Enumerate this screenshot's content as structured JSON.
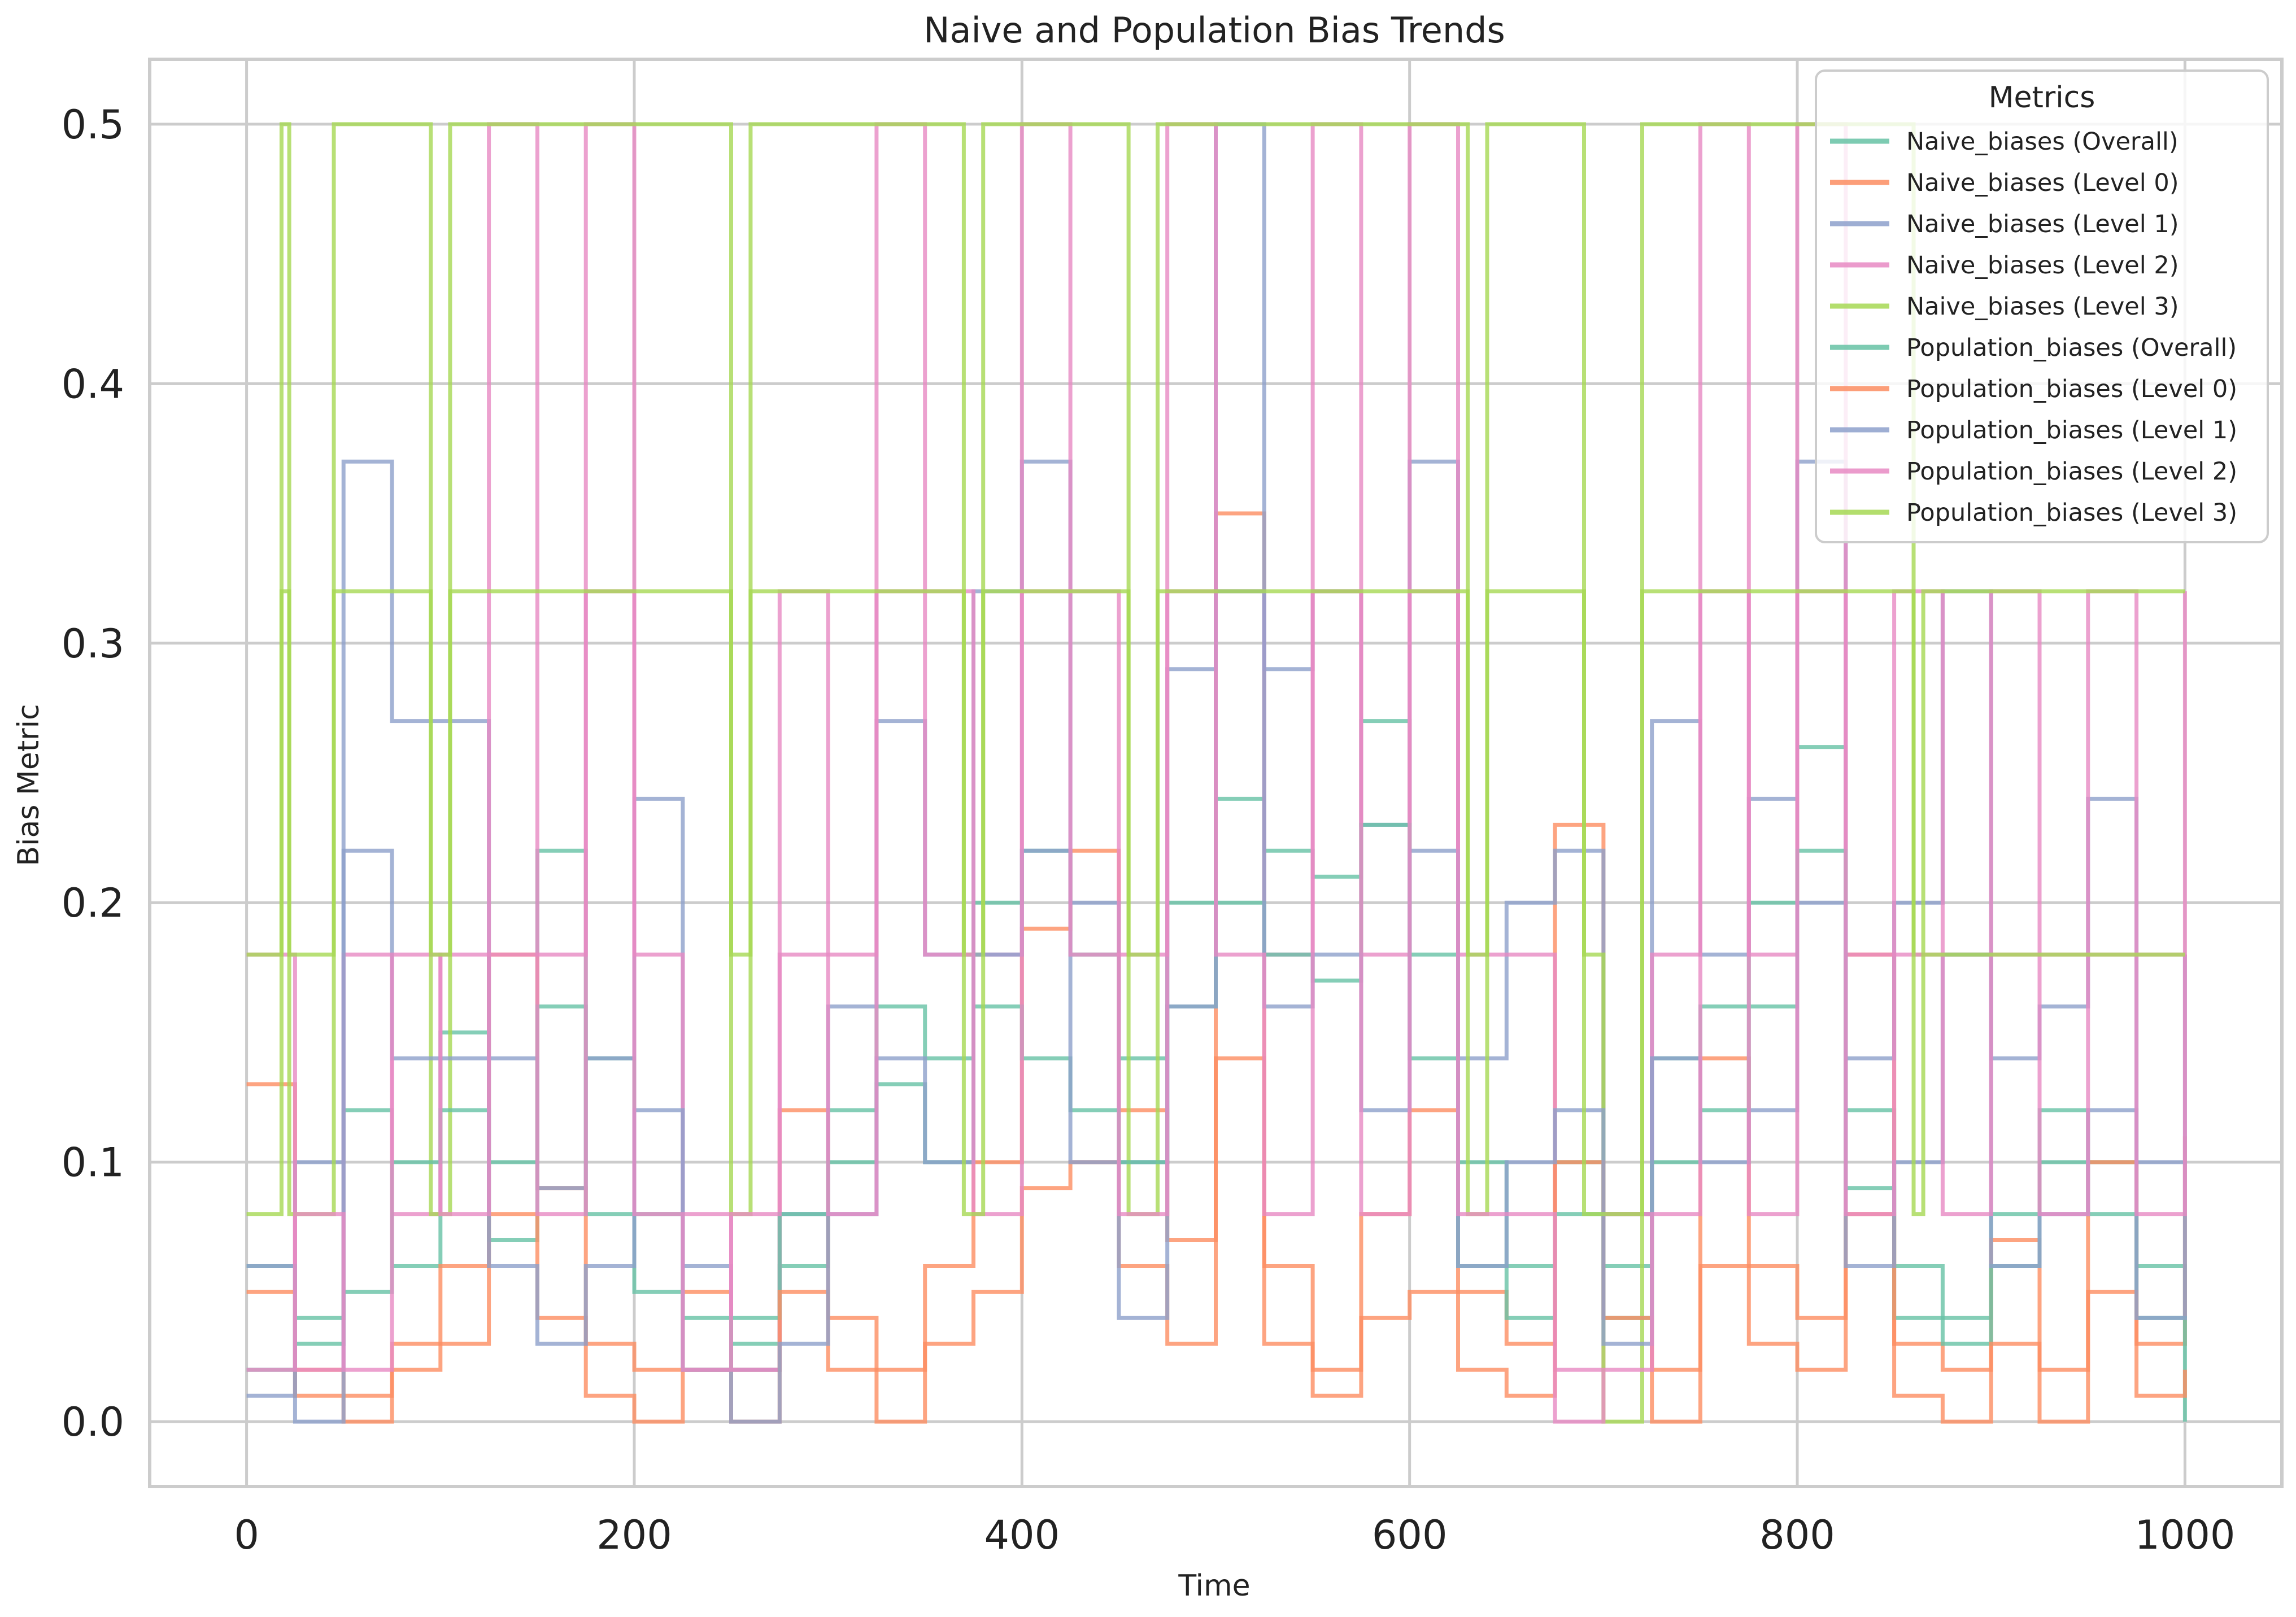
{
  "chart_data": {
    "type": "line",
    "title": "Naive and Population Bias Trends",
    "xlabel": "Time",
    "ylabel": "Bias Metric",
    "xlim": [
      -50,
      1050
    ],
    "ylim": [
      -0.025,
      0.525
    ],
    "x_ticks": [
      0,
      200,
      400,
      600,
      800,
      1000
    ],
    "y_ticks": [
      0.0,
      0.1,
      0.2,
      0.3,
      0.4,
      0.5
    ],
    "x_tick_labels": [
      "0",
      "200",
      "400",
      "600",
      "800",
      "1000"
    ],
    "y_tick_labels": [
      "0.0",
      "0.1",
      "0.2",
      "0.3",
      "0.4",
      "0.5"
    ],
    "grid": true,
    "line_style": "steps",
    "legend": {
      "title": "Metrics",
      "placement": "top-right"
    },
    "series": [
      {
        "name": "Naive_biases (Overall)",
        "color": "#66c2a5",
        "x": [
          0,
          25,
          50,
          75,
          100,
          125,
          150,
          175,
          200,
          225,
          250,
          275,
          300,
          325,
          350,
          375,
          400,
          425,
          450,
          475,
          500,
          525,
          550,
          575,
          600,
          625,
          650,
          675,
          700,
          725,
          750,
          775,
          800,
          825,
          850,
          875,
          900,
          925,
          950,
          975,
          1000
        ],
        "values": [
          0.02,
          0.04,
          0.12,
          0.06,
          0.15,
          0.1,
          0.22,
          0.14,
          0.08,
          0.04,
          0.03,
          0.06,
          0.12,
          0.16,
          0.14,
          0.2,
          0.22,
          0.18,
          0.14,
          0.2,
          0.24,
          0.22,
          0.21,
          0.27,
          0.18,
          0.1,
          0.06,
          0.1,
          0.06,
          0.14,
          0.16,
          0.2,
          0.26,
          0.12,
          0.06,
          0.04,
          0.08,
          0.12,
          0.1,
          0.06,
          0.04
        ]
      },
      {
        "name": "Naive_biases (Level 0)",
        "color": "#fc8d62",
        "x": [
          0,
          25,
          50,
          75,
          100,
          125,
          150,
          175,
          200,
          225,
          250,
          275,
          300,
          325,
          350,
          375,
          400,
          425,
          450,
          475,
          500,
          525,
          550,
          575,
          600,
          625,
          650,
          675,
          700,
          725,
          750,
          775,
          800,
          825,
          850,
          875,
          900,
          925,
          950,
          975,
          1000
        ],
        "values": [
          0.13,
          0.02,
          0.01,
          0.03,
          0.06,
          0.18,
          0.09,
          0.03,
          0.02,
          0.05,
          0.02,
          0.12,
          0.04,
          0.02,
          0.06,
          0.1,
          0.19,
          0.22,
          0.12,
          0.07,
          0.35,
          0.06,
          0.02,
          0.08,
          0.12,
          0.05,
          0.03,
          0.23,
          0.08,
          0.02,
          0.14,
          0.06,
          0.04,
          0.18,
          0.03,
          0.02,
          0.07,
          0.02,
          0.1,
          0.03,
          0.11
        ]
      },
      {
        "name": "Naive_biases (Level 1)",
        "color": "#8da0cb",
        "x": [
          0,
          25,
          50,
          75,
          100,
          125,
          150,
          175,
          200,
          225,
          250,
          275,
          300,
          325,
          350,
          375,
          400,
          425,
          450,
          475,
          500,
          525,
          550,
          575,
          600,
          625,
          650,
          675,
          700,
          725,
          750,
          775,
          800,
          825,
          850,
          875,
          900,
          925,
          950,
          975,
          1000
        ],
        "values": [
          0.01,
          0.1,
          0.37,
          0.27,
          0.27,
          0.14,
          0.09,
          0.14,
          0.24,
          0.06,
          0.02,
          0.08,
          0.16,
          0.27,
          0.18,
          0.32,
          0.37,
          0.2,
          0.1,
          0.29,
          0.5,
          0.29,
          0.32,
          0.23,
          0.37,
          0.14,
          0.2,
          0.22,
          0.08,
          0.27,
          0.18,
          0.24,
          0.37,
          0.14,
          0.2,
          0.32,
          0.14,
          0.16,
          0.24,
          0.1,
          0.18
        ]
      },
      {
        "name": "Naive_biases (Level 2)",
        "color": "#e78ac3",
        "x": [
          0,
          25,
          50,
          75,
          100,
          125,
          150,
          175,
          200,
          225,
          250,
          275,
          300,
          325,
          350,
          375,
          400,
          425,
          450,
          475,
          500,
          525,
          550,
          575,
          600,
          625,
          650,
          675,
          700,
          725,
          750,
          775,
          800,
          825,
          850,
          875,
          900,
          925,
          950,
          975,
          1000
        ],
        "values": [
          0.18,
          0.02,
          0.18,
          0.08,
          0.18,
          0.5,
          0.18,
          0.5,
          0.18,
          0.08,
          0.02,
          0.32,
          0.18,
          0.5,
          0.32,
          0.18,
          0.5,
          0.32,
          0.18,
          0.5,
          0.32,
          0.18,
          0.5,
          0.18,
          0.5,
          0.18,
          0.18,
          0.02,
          0.08,
          0.18,
          0.5,
          0.18,
          0.5,
          0.18,
          0.32,
          0.18,
          0.32,
          0.18,
          0.32,
          0.18,
          0.32
        ]
      },
      {
        "name": "Naive_biases (Level 3)",
        "color": "#a6d854",
        "x": [
          0,
          18,
          22,
          45,
          95,
          105,
          250,
          260,
          370,
          380,
          455,
          470,
          630,
          640,
          690,
          700,
          720,
          860,
          865,
          1000
        ],
        "values": [
          0.18,
          0.5,
          0.08,
          0.5,
          0.08,
          0.5,
          0.08,
          0.5,
          0.18,
          0.5,
          0.08,
          0.5,
          0.08,
          0.5,
          0.18,
          0.0,
          0.5,
          0.18,
          0.32,
          0.32
        ]
      },
      {
        "name": "Population_biases (Overall)",
        "color": "#66c2a5",
        "x": [
          0,
          25,
          50,
          75,
          100,
          125,
          150,
          175,
          200,
          225,
          250,
          275,
          300,
          325,
          350,
          375,
          400,
          425,
          450,
          475,
          500,
          525,
          550,
          575,
          600,
          625,
          650,
          675,
          700,
          725,
          750,
          775,
          800,
          825,
          850,
          875,
          900,
          925,
          950,
          975,
          1000
        ],
        "values": [
          0.06,
          0.03,
          0.05,
          0.1,
          0.12,
          0.07,
          0.16,
          0.08,
          0.05,
          0.02,
          0.04,
          0.08,
          0.1,
          0.13,
          0.1,
          0.16,
          0.14,
          0.12,
          0.1,
          0.16,
          0.2,
          0.18,
          0.17,
          0.23,
          0.14,
          0.06,
          0.04,
          0.08,
          0.04,
          0.1,
          0.12,
          0.16,
          0.22,
          0.09,
          0.04,
          0.03,
          0.06,
          0.1,
          0.08,
          0.04,
          0.0
        ]
      },
      {
        "name": "Population_biases (Level 0)",
        "color": "#fc8d62",
        "x": [
          0,
          25,
          50,
          75,
          100,
          125,
          150,
          175,
          200,
          225,
          250,
          275,
          300,
          325,
          350,
          375,
          400,
          425,
          450,
          475,
          500,
          525,
          550,
          575,
          600,
          625,
          650,
          675,
          700,
          725,
          750,
          775,
          800,
          825,
          850,
          875,
          900,
          925,
          950,
          975,
          1000
        ],
        "values": [
          0.05,
          0.01,
          0.0,
          0.02,
          0.03,
          0.08,
          0.04,
          0.01,
          0.0,
          0.02,
          0.0,
          0.05,
          0.02,
          0.0,
          0.03,
          0.05,
          0.09,
          0.1,
          0.06,
          0.03,
          0.14,
          0.03,
          0.01,
          0.04,
          0.05,
          0.02,
          0.01,
          0.1,
          0.04,
          0.0,
          0.06,
          0.03,
          0.02,
          0.08,
          0.01,
          0.0,
          0.03,
          0.0,
          0.05,
          0.01,
          0.02
        ]
      },
      {
        "name": "Population_biases (Level 1)",
        "color": "#8da0cb",
        "x": [
          0,
          25,
          50,
          75,
          100,
          125,
          150,
          175,
          200,
          225,
          250,
          275,
          300,
          325,
          350,
          375,
          400,
          425,
          450,
          475,
          500,
          525,
          550,
          575,
          600,
          625,
          650,
          675,
          700,
          725,
          750,
          775,
          800,
          825,
          850,
          875,
          900,
          925,
          950,
          975,
          1000
        ],
        "values": [
          0.06,
          0.0,
          0.22,
          0.14,
          0.14,
          0.06,
          0.03,
          0.06,
          0.12,
          0.02,
          0.0,
          0.03,
          0.08,
          0.14,
          0.1,
          0.18,
          0.22,
          0.1,
          0.04,
          0.16,
          0.32,
          0.16,
          0.18,
          0.12,
          0.22,
          0.06,
          0.1,
          0.12,
          0.03,
          0.14,
          0.1,
          0.12,
          0.2,
          0.06,
          0.1,
          0.18,
          0.06,
          0.08,
          0.12,
          0.04,
          0.1
        ]
      },
      {
        "name": "Population_biases (Level 2)",
        "color": "#e78ac3",
        "x": [
          0,
          25,
          50,
          75,
          100,
          125,
          150,
          175,
          200,
          225,
          250,
          275,
          300,
          325,
          350,
          375,
          400,
          425,
          450,
          475,
          500,
          525,
          550,
          575,
          600,
          625,
          650,
          675,
          700,
          725,
          750,
          775,
          800,
          825,
          850,
          875,
          900,
          925,
          950,
          975,
          1000
        ],
        "values": [
          0.02,
          0.08,
          0.02,
          0.18,
          0.08,
          0.18,
          0.08,
          0.32,
          0.08,
          0.02,
          0.08,
          0.18,
          0.08,
          0.32,
          0.18,
          0.08,
          0.32,
          0.18,
          0.08,
          0.32,
          0.18,
          0.08,
          0.32,
          0.08,
          0.32,
          0.08,
          0.08,
          0.0,
          0.02,
          0.08,
          0.32,
          0.08,
          0.32,
          0.08,
          0.18,
          0.08,
          0.18,
          0.08,
          0.18,
          0.08,
          0.18
        ]
      },
      {
        "name": "Population_biases (Level 3)",
        "color": "#a6d854",
        "x": [
          0,
          18,
          22,
          45,
          95,
          105,
          250,
          260,
          370,
          380,
          455,
          470,
          630,
          640,
          690,
          700,
          720,
          860,
          865,
          1000
        ],
        "values": [
          0.08,
          0.32,
          0.18,
          0.32,
          0.18,
          0.32,
          0.18,
          0.32,
          0.08,
          0.32,
          0.18,
          0.32,
          0.18,
          0.32,
          0.08,
          0.08,
          0.32,
          0.08,
          0.18,
          0.18
        ]
      }
    ]
  }
}
